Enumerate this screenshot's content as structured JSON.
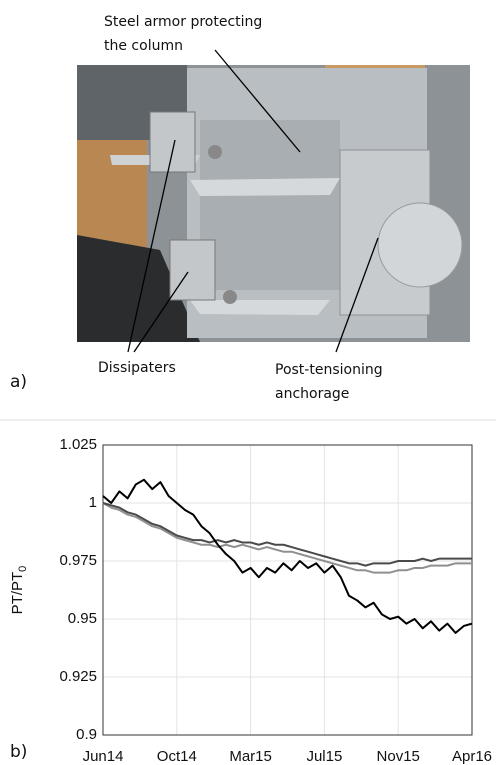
{
  "photo": {
    "panel_label": "a)",
    "annotations": {
      "armor": [
        "Steel armor protecting",
        "the column"
      ],
      "dissipaters": "Dissipaters",
      "anchorage": [
        "Post-tensioning",
        "anchorage"
      ]
    }
  },
  "chart_data": {
    "type": "line",
    "panel_label": "b)",
    "ylabel": {
      "text": "PT/PT",
      "subscript": "0"
    },
    "x": [
      0,
      0.5,
      1,
      1.5,
      2,
      2.5,
      3,
      3.5,
      4,
      4.5,
      5,
      5.5,
      6,
      6.5,
      7,
      7.5,
      8,
      8.5,
      9,
      9.5,
      10,
      10.5,
      11,
      11.5,
      12,
      12.5,
      13,
      13.5,
      14,
      14.5,
      15,
      15.5,
      16,
      16.5,
      17,
      17.5,
      18,
      18.5,
      19,
      19.5,
      20,
      20.5,
      21,
      21.5,
      22,
      22.5
    ],
    "series": [
      {
        "color": "#8f8f8f",
        "values": [
          1.0,
          0.998,
          0.997,
          0.995,
          0.994,
          0.992,
          0.99,
          0.989,
          0.987,
          0.985,
          0.984,
          0.983,
          0.982,
          0.982,
          0.981,
          0.982,
          0.981,
          0.982,
          0.981,
          0.98,
          0.981,
          0.98,
          0.979,
          0.979,
          0.978,
          0.977,
          0.976,
          0.975,
          0.974,
          0.973,
          0.972,
          0.971,
          0.971,
          0.97,
          0.97,
          0.97,
          0.971,
          0.971,
          0.972,
          0.972,
          0.973,
          0.973,
          0.973,
          0.974,
          0.974,
          0.974
        ]
      },
      {
        "color": "#4a4a4a",
        "values": [
          1.0,
          0.999,
          0.998,
          0.996,
          0.995,
          0.993,
          0.991,
          0.99,
          0.988,
          0.986,
          0.985,
          0.984,
          0.984,
          0.983,
          0.984,
          0.983,
          0.984,
          0.983,
          0.983,
          0.982,
          0.983,
          0.982,
          0.982,
          0.981,
          0.98,
          0.979,
          0.978,
          0.977,
          0.976,
          0.975,
          0.974,
          0.974,
          0.973,
          0.974,
          0.974,
          0.974,
          0.975,
          0.975,
          0.975,
          0.976,
          0.975,
          0.976,
          0.976,
          0.976,
          0.976,
          0.976
        ]
      },
      {
        "color": "#000000",
        "values": [
          1.003,
          1.0,
          1.005,
          1.002,
          1.008,
          1.01,
          1.006,
          1.009,
          1.003,
          1.0,
          0.997,
          0.995,
          0.99,
          0.987,
          0.982,
          0.978,
          0.975,
          0.97,
          0.972,
          0.968,
          0.972,
          0.97,
          0.974,
          0.971,
          0.975,
          0.972,
          0.974,
          0.97,
          0.973,
          0.968,
          0.96,
          0.958,
          0.955,
          0.957,
          0.952,
          0.95,
          0.951,
          0.948,
          0.95,
          0.946,
          0.949,
          0.945,
          0.948,
          0.944,
          0.947,
          0.948
        ]
      }
    ],
    "xlim": [
      0,
      22.5
    ],
    "xticks": [
      {
        "value": 0,
        "label": "Jun14"
      },
      {
        "value": 4.5,
        "label": "Oct14"
      },
      {
        "value": 9,
        "label": "Mar15"
      },
      {
        "value": 13.5,
        "label": "Jul15"
      },
      {
        "value": 18,
        "label": "Nov15"
      },
      {
        "value": 22.5,
        "label": "Apr16"
      }
    ],
    "ylim": [
      0.9,
      1.025
    ],
    "yticks": [
      0.9,
      0.925,
      0.95,
      0.975,
      1,
      1.025
    ],
    "grid": true
  }
}
